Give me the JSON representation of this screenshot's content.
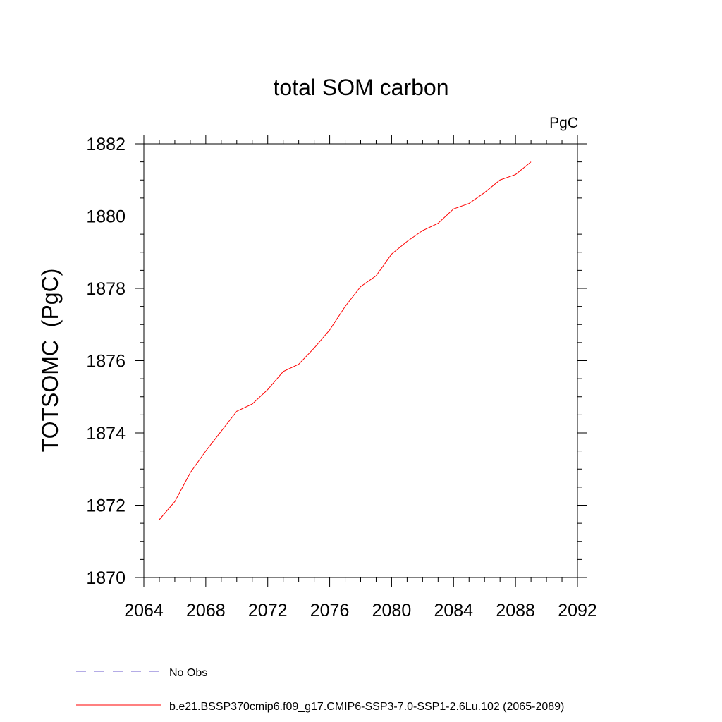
{
  "chart_data": {
    "type": "line",
    "title": "total SOM carbon",
    "units_label": "PgC",
    "ylabel": "TOTSOMC  (PgC)",
    "xlabel": "",
    "xlim": [
      2064,
      2092
    ],
    "ylim": [
      1870,
      1882
    ],
    "x_ticks": [
      2064,
      2068,
      2072,
      2076,
      2080,
      2084,
      2088,
      2092
    ],
    "y_ticks": [
      1870,
      1872,
      1874,
      1876,
      1878,
      1880,
      1882
    ],
    "x_tick_labels": [
      "2064",
      "2068",
      "2072",
      "2076",
      "2080",
      "2084",
      "2088",
      "2092"
    ],
    "y_tick_labels": [
      "1870",
      "1872",
      "1874",
      "1876",
      "1878",
      "1880",
      "1882"
    ],
    "grid": false,
    "legend_position": "bottom",
    "series": [
      {
        "name": "b.e21.BSSP370cmip6.f09_g17.CMIP6-SSP3-7.0-SSP1-2.6Lu.102 (2065-2089)",
        "color": "#ff0000",
        "style": "solid",
        "x": [
          2065,
          2066,
          2067,
          2068,
          2069,
          2070,
          2071,
          2072,
          2073,
          2074,
          2075,
          2076,
          2077,
          2078,
          2079,
          2080,
          2081,
          2082,
          2083,
          2084,
          2085,
          2086,
          2087,
          2088,
          2089
        ],
        "values": [
          1871.6,
          1872.1,
          1872.9,
          1873.5,
          1874.05,
          1874.6,
          1874.8,
          1875.2,
          1875.7,
          1875.9,
          1876.35,
          1876.85,
          1877.5,
          1878.05,
          1878.35,
          1878.95,
          1879.3,
          1879.6,
          1879.8,
          1880.2,
          1880.35,
          1880.65,
          1881.0,
          1881.15,
          1881.5
        ]
      }
    ],
    "legend": [
      {
        "label": "No Obs",
        "color": "#6a5acd",
        "style": "dashed"
      },
      {
        "label": "b.e21.BSSP370cmip6.f09_g17.CMIP6-SSP3-7.0-SSP1-2.6Lu.102 (2065-2089)",
        "color": "#ff0000",
        "style": "solid"
      }
    ]
  }
}
